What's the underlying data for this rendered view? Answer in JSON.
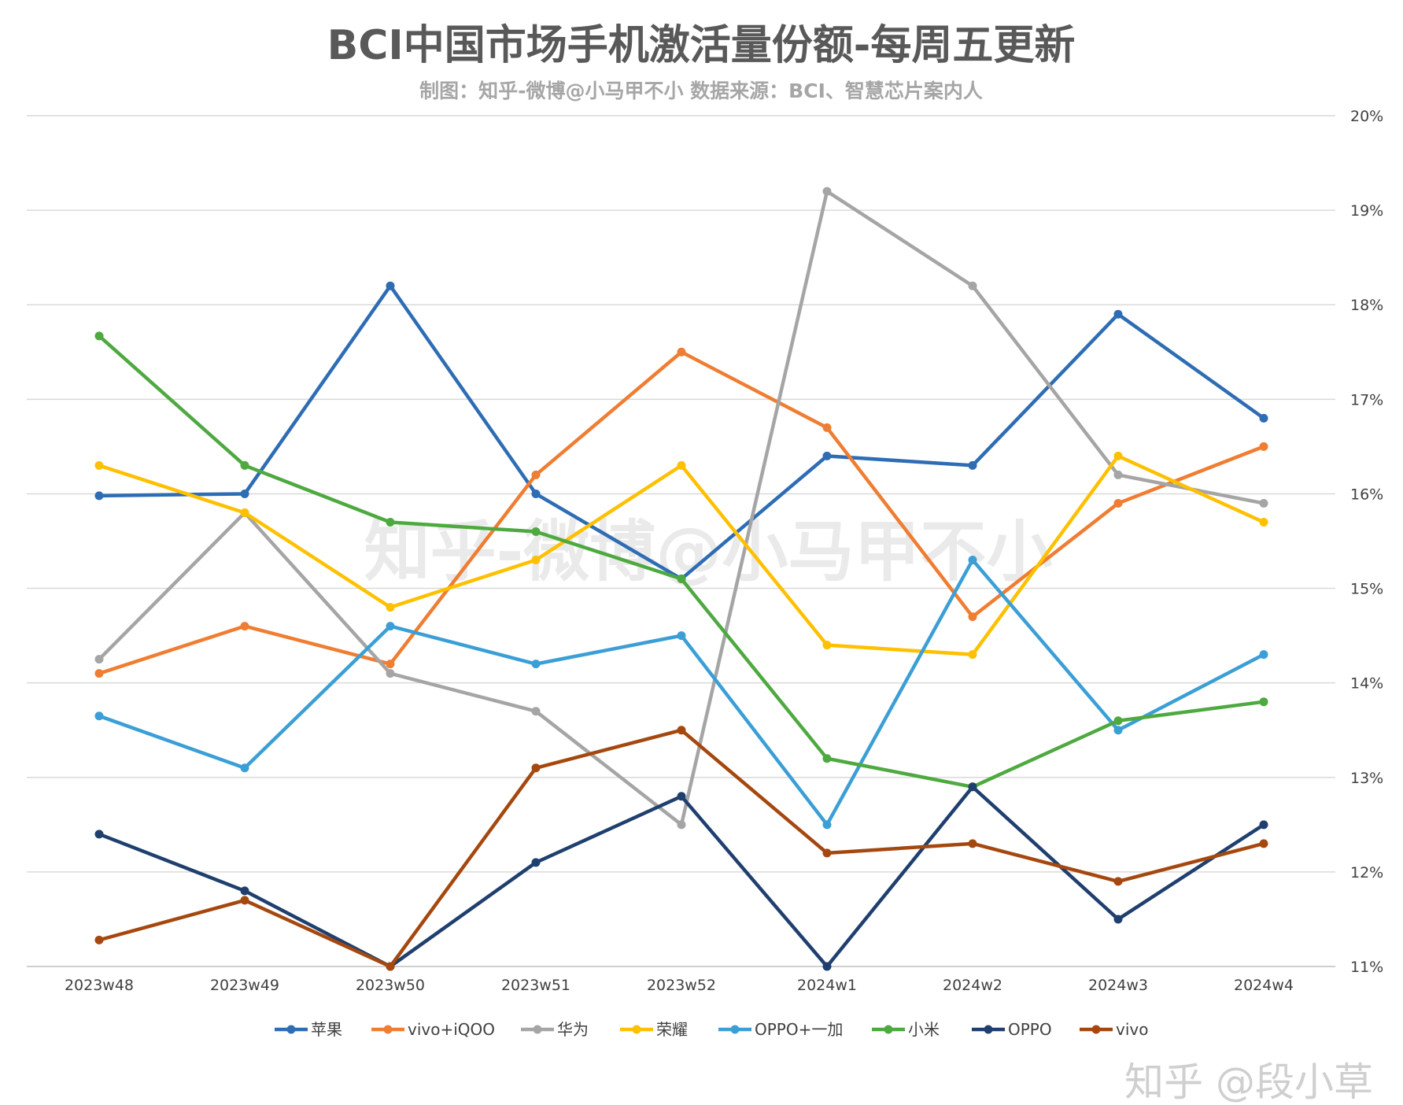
{
  "chart_data": {
    "type": "line",
    "title": "BCI中国市场手机激活量份额-每周五更新",
    "subtitle": "制图：知乎-微博@小马甲不小  数据来源：BCI、智慧芯片案内人",
    "categories": [
      "2023w48",
      "2023w49",
      "2023w50",
      "2023w51",
      "2023w52",
      "2024w1",
      "2024w2",
      "2024w3",
      "2024w4"
    ],
    "y_axis": {
      "position": "right",
      "ylim": [
        11,
        20
      ],
      "ticks": [
        11,
        12,
        13,
        14,
        15,
        16,
        17,
        18,
        19,
        20
      ],
      "tick_suffix": "%"
    },
    "grid": true,
    "legend": "bottom",
    "series": [
      {
        "name": "苹果",
        "color": "#2e6db4",
        "values": [
          15.98,
          16.0,
          18.2,
          16.0,
          15.1,
          16.4,
          16.3,
          17.9,
          16.8
        ]
      },
      {
        "name": "vivo+iQOO",
        "color": "#ef7d32",
        "values": [
          14.1,
          14.6,
          14.2,
          16.2,
          17.5,
          16.7,
          14.7,
          15.9,
          16.5
        ]
      },
      {
        "name": "华为",
        "color": "#a5a5a5",
        "values": [
          14.25,
          15.8,
          14.1,
          13.7,
          12.5,
          19.2,
          18.2,
          16.2,
          15.9
        ]
      },
      {
        "name": "荣耀",
        "color": "#ffc000",
        "values": [
          16.3,
          15.8,
          14.8,
          15.3,
          16.3,
          14.4,
          14.3,
          16.4,
          15.7
        ]
      },
      {
        "name": "OPPO+一加",
        "color": "#3b9fd6",
        "values": [
          13.65,
          13.1,
          14.6,
          14.2,
          14.5,
          12.5,
          15.3,
          13.5,
          14.3
        ]
      },
      {
        "name": "小米",
        "color": "#4ea940",
        "values": [
          17.67,
          16.3,
          15.7,
          15.6,
          15.1,
          13.2,
          12.9,
          13.6,
          13.8
        ]
      },
      {
        "name": "OPPO",
        "color": "#1f3f6e",
        "values": [
          12.4,
          11.8,
          11.0,
          12.1,
          12.8,
          11.0,
          12.9,
          11.5,
          12.5
        ]
      },
      {
        "name": "vivo",
        "color": "#a5480f",
        "values": [
          11.28,
          11.7,
          11.0,
          13.1,
          13.5,
          12.2,
          12.3,
          11.9,
          12.3
        ]
      }
    ],
    "watermarks": [
      "知乎-微博@小马甲不小",
      "知乎 @段小草"
    ]
  }
}
